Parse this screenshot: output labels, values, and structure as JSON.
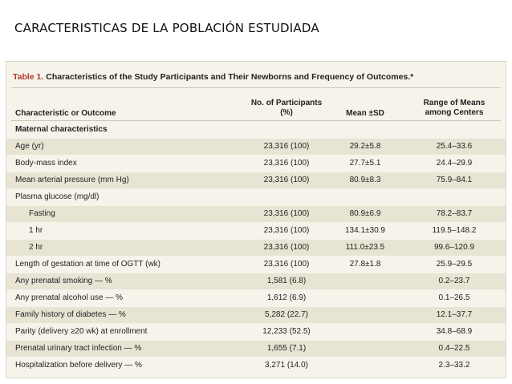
{
  "slide": {
    "title": "CARACTERISTICAS DE LA POBLACIÓN ESTUDIADA"
  },
  "table": {
    "caption_number": "Table 1.",
    "caption_text": "Characteristics of the Study Participants and Their Newborns and Frequency of Outcomes.*",
    "headers": {
      "characteristic": "Characteristic or Outcome",
      "participants_line1": "No. of Participants",
      "participants_line2": "(%)",
      "mean": "Mean ±SD",
      "range_line1": "Range of Means",
      "range_line2": "among Centers"
    },
    "rows": [
      {
        "label": "Maternal characteristics",
        "n": "",
        "mean": "",
        "range": ""
      },
      {
        "label": "Age (yr)",
        "n": "23,316 (100)",
        "mean": "29.2±5.8",
        "range": "25.4–33.6"
      },
      {
        "label": "Body-mass index",
        "n": "23,316 (100)",
        "mean": "27.7±5.1",
        "range": "24.4–29.9"
      },
      {
        "label": "Mean arterial pressure (mm Hg)",
        "n": "23,316 (100)",
        "mean": "80.9±8.3",
        "range": "75.9–84.1"
      },
      {
        "label": "Plasma glucose (mg/dl)",
        "n": "",
        "mean": "",
        "range": ""
      },
      {
        "label": "Fasting",
        "n": "23,316 (100)",
        "mean": "80.9±6.9",
        "range": "78.2–83.7"
      },
      {
        "label": "1 hr",
        "n": "23,316 (100)",
        "mean": "134.1±30.9",
        "range": "119.5–148.2"
      },
      {
        "label": "2 hr",
        "n": "23,316 (100)",
        "mean": "111.0±23.5",
        "range": "99.6–120.9"
      },
      {
        "label": "Length of gestation at time of OGTT (wk)",
        "n": "23,316 (100)",
        "mean": "27.8±1.8",
        "range": "25.9–29.5"
      },
      {
        "label": "Any prenatal smoking — %",
        "n": "1,581 (6.8)",
        "mean": "",
        "range": "0.2–23.7"
      },
      {
        "label": "Any prenatal alcohol use — %",
        "n": "1,612 (6.9)",
        "mean": "",
        "range": "0.1–26.5"
      },
      {
        "label": "Family history of diabetes — %",
        "n": "5,282 (22.7)",
        "mean": "",
        "range": "12.1–37.7"
      },
      {
        "label": "Parity (delivery ≥20 wk) at enrollment",
        "n": "12,233 (52.5)",
        "mean": "",
        "range": "34.8–68.9"
      },
      {
        "label": "Prenatal urinary tract infection — %",
        "n": "1,655 (7.1)",
        "mean": "",
        "range": "0.4–22.5"
      },
      {
        "label": "Hospitalization before delivery — %",
        "n": "3,271 (14.0)",
        "mean": "",
        "range": "2.3–33.2"
      }
    ]
  }
}
